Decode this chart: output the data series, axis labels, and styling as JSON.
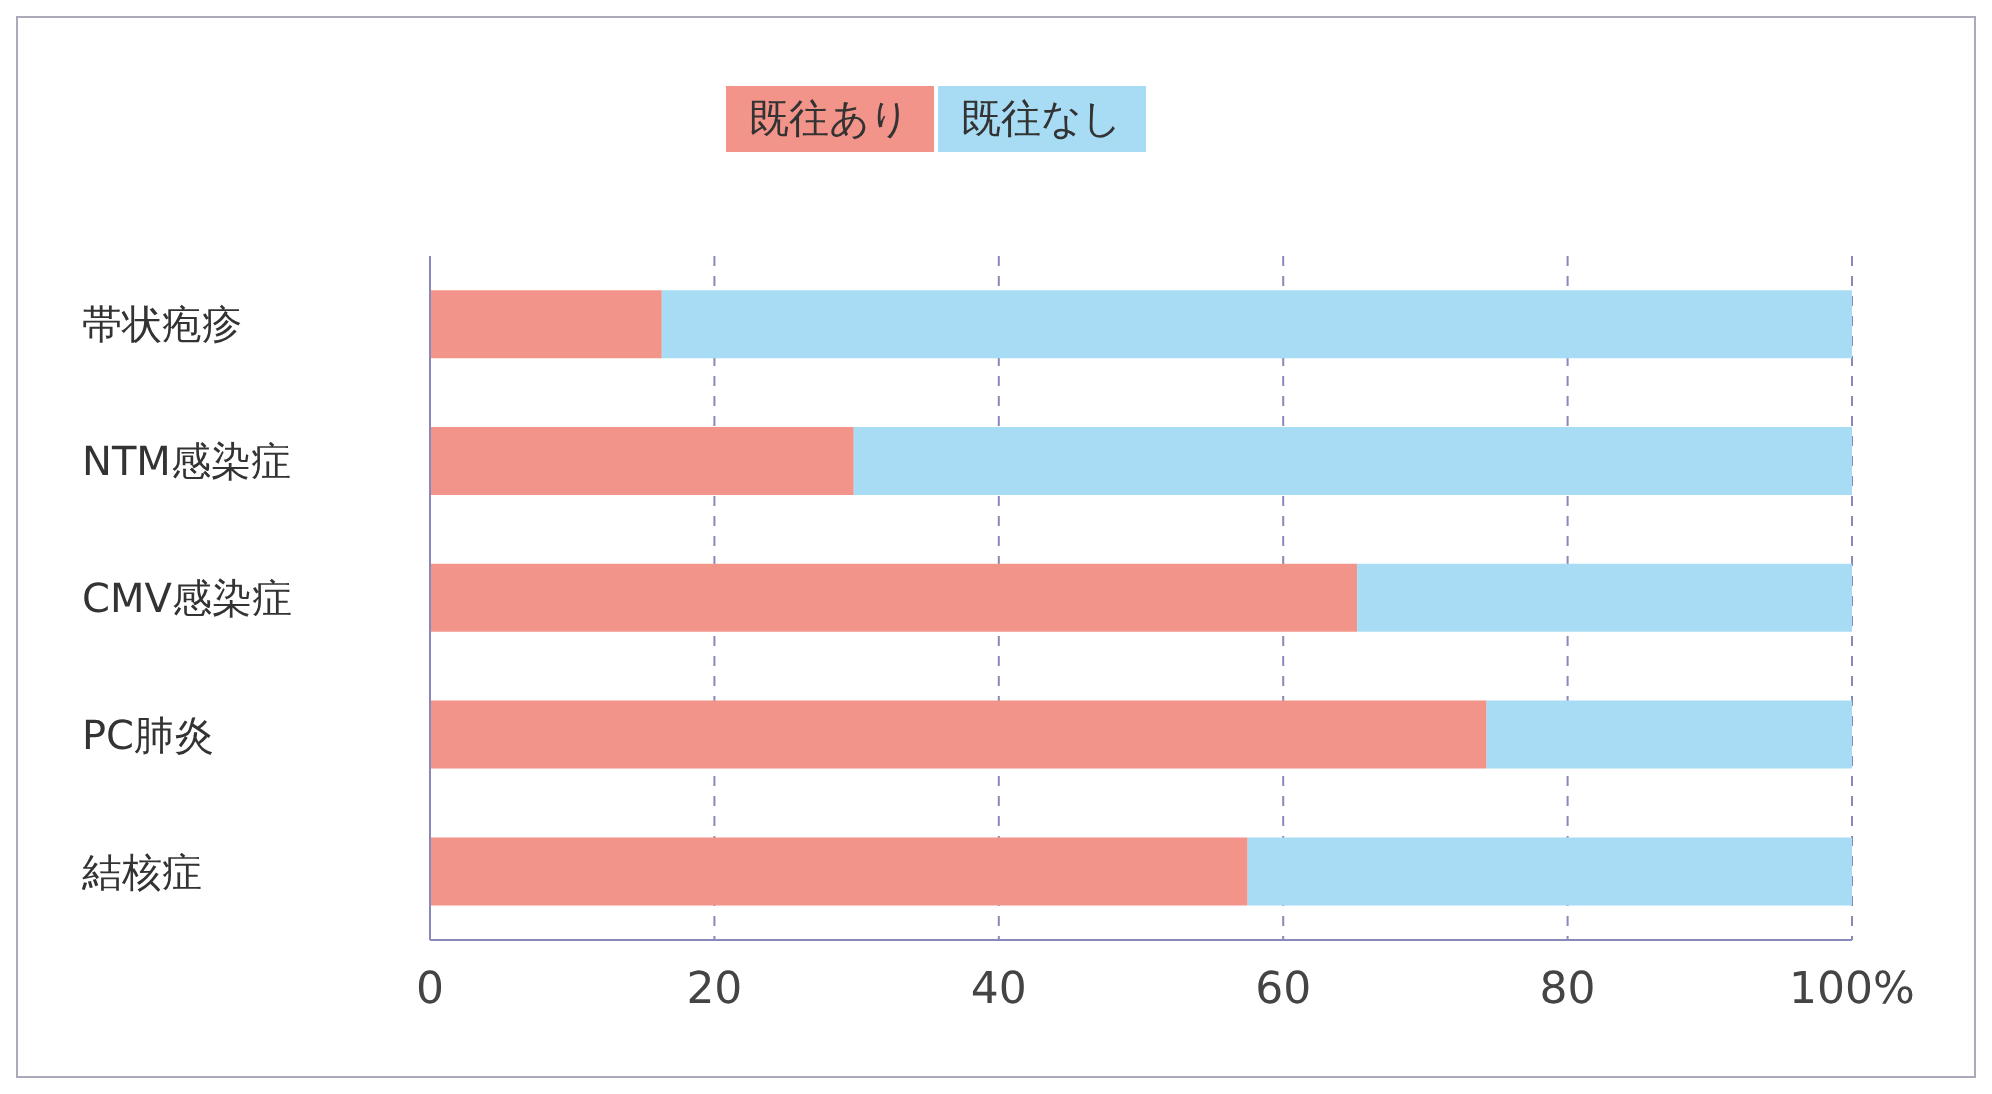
{
  "chart_data": {
    "type": "bar",
    "orientation": "horizontal",
    "stacked": true,
    "categories": [
      "帯状疱疹",
      "NTM感染症",
      "CMV感染症",
      "PC肺炎",
      "結核症"
    ],
    "series": [
      {
        "name": "既往あり",
        "color": "#f2948a",
        "values": [
          16.3,
          29.8,
          65.2,
          74.3,
          57.5
        ]
      },
      {
        "name": "既往なし",
        "color": "#a8dcf4",
        "values": [
          83.7,
          70.2,
          34.8,
          25.7,
          42.5
        ]
      }
    ],
    "xlim": [
      0,
      100
    ],
    "xticks": [
      0,
      20,
      40,
      60,
      80,
      {
        "value": 100,
        "label": "100%"
      }
    ],
    "grid": "x",
    "legend": "top"
  }
}
